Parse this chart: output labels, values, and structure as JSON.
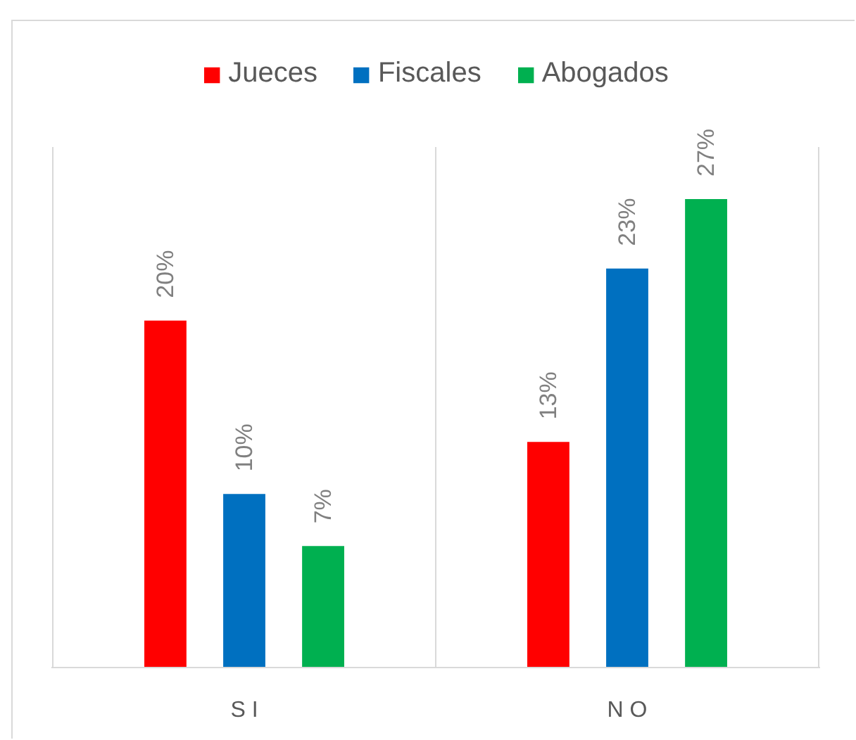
{
  "chart_data": {
    "type": "bar",
    "categories": [
      "S I",
      "N O"
    ],
    "series": [
      {
        "name": "Jueces",
        "color": "#ff0000",
        "values": [
          20,
          13
        ],
        "value_labels": [
          "20%",
          "13%"
        ]
      },
      {
        "name": "Fiscales",
        "color": "#0070c0",
        "values": [
          10,
          23
        ],
        "value_labels": [
          "10%",
          "23%"
        ]
      },
      {
        "name": "Abogados",
        "color": "#00b050",
        "values": [
          7,
          27
        ],
        "value_labels": [
          "7%",
          "27%"
        ]
      }
    ],
    "grid": "x",
    "legend": "top"
  }
}
